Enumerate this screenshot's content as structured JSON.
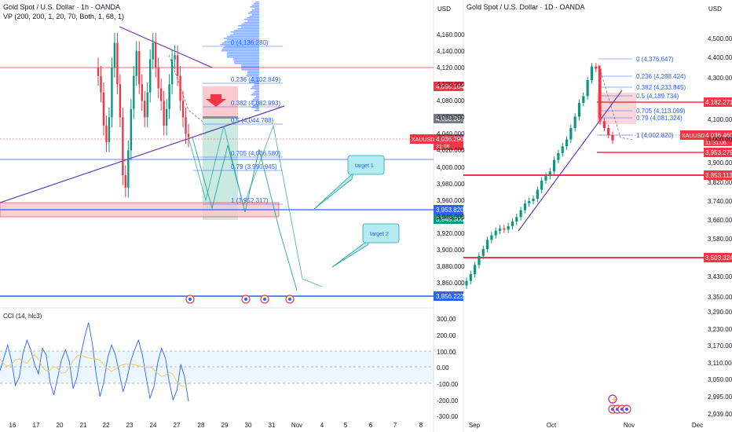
{
  "left_panel": {
    "title": "Gold Spot / U.S. Dollar · 1h · OANDA",
    "indicator": "VP (200, 200, 1, 20, 70, Both, 1, 68, 1)",
    "currency": "USD",
    "price_ticks": [
      "4,160.000",
      "4,140.000",
      "4,120.000",
      "4,100.000",
      "4,080.000",
      "4,060.000",
      "4,040.000",
      "4,020.000",
      "4,000.000",
      "3,980.000",
      "3,960.000",
      "3,940.000",
      "3,920.000",
      "3,900.000",
      "3,880.000",
      "3,860.000"
    ],
    "price_tags": [
      {
        "label": "4,096.164",
        "color": "#f23645"
      },
      {
        "label": "4,058.367",
        "color": "#787b86"
      },
      {
        "label": "4,036.290",
        "sub": "31:06",
        "color": "#f23645"
      },
      {
        "label": "3,953.820",
        "color": "#2962ff"
      },
      {
        "label": "3,945.300",
        "color": "#089981"
      },
      {
        "label": "3,856.222",
        "color": "#2962ff"
      }
    ],
    "symbol_tag": "XAUUSD",
    "fib_levels": [
      "0 (4,136.280)",
      "0.236 (4,102.849)",
      "0.382 (4,082.993)",
      "0.5 (4,044.788)",
      "0.705 (4,006.580)",
      "0.79 (3,990.945)",
      "1 (3,952.317)"
    ],
    "annotations": [
      "target 1",
      "target 2"
    ],
    "x_ticks": [
      "16",
      "17",
      "20",
      "21",
      "22",
      "23",
      "24",
      "27",
      "28",
      "29",
      "30",
      "31",
      "Nov",
      "4",
      "5",
      "6",
      "7",
      "8"
    ],
    "cci": {
      "label": "CCI (14, hlc3)",
      "ticks": [
        "300.00",
        "200.00",
        "100.00",
        "0.00",
        "-100.00",
        "-200.00",
        "-300.00"
      ]
    }
  },
  "right_panel": {
    "title": "Gold Spot / U.S. Dollar · 1D · OANDA",
    "currency": "USD",
    "price_ticks": [
      "4,500.000",
      "4,400.000",
      "4,300.000",
      "4,100.000",
      "4,000.000",
      "3,900.000",
      "3,820.000",
      "3,740.000",
      "3,660.000",
      "3,580.000",
      "3,430.000",
      "3,350.000",
      "3,290.000",
      "3,230.000",
      "3,170.000",
      "3,110.000",
      "3,050.000",
      "2,995.000",
      "2,939.000"
    ],
    "price_tags": [
      {
        "label": "4,182.271",
        "color": "#f23645"
      },
      {
        "label": "4,036.460",
        "sub": "11:31:06",
        "color": "#f23645"
      },
      {
        "label": "3,953.279",
        "color": "#f23645"
      },
      {
        "label": "3,853.113",
        "color": "#f23645"
      },
      {
        "label": "3,503.324",
        "color": "#f23645"
      }
    ],
    "symbol_tag": "XAUUSD",
    "fib_levels": [
      "0 (4,376.647)",
      "0.236 (4,288.424)",
      "0.382 (4,233.845)",
      "0.5 (4,189.734)",
      "0.705 (4,113.099)",
      "0.79 (4,081.324)",
      "1 (4,002.820)"
    ],
    "x_ticks": [
      "Sep",
      "Oct",
      "Nov",
      "Dec"
    ]
  },
  "chart_data": [
    {
      "type": "line",
      "timeframe": "1h",
      "title": "Gold Spot / U.S. Dollar · 1h · OANDA",
      "ylim": [
        3856,
        4175
      ],
      "close_series": [
        4110,
        4090,
        4050,
        4030,
        4060,
        4120,
        4150,
        4100,
        4060,
        3990,
        3975,
        4020,
        4070,
        4110,
        4140,
        4100,
        4080,
        4060,
        4090,
        4130,
        4150,
        4120,
        4095,
        4080,
        4050,
        4070,
        4100,
        4130,
        4135,
        4110,
        4080,
        4060,
        4040,
        4036
      ],
      "current_price": 4036.29
    },
    {
      "type": "line",
      "timeframe": "1D",
      "title": "Gold Spot / U.S. Dollar · 1D · OANDA",
      "ylim": [
        2939,
        4500
      ],
      "close_series": [
        3420,
        3450,
        3490,
        3530,
        3560,
        3600,
        3620,
        3640,
        3650,
        3645,
        3660,
        3680,
        3700,
        3730,
        3760,
        3770,
        3780,
        3820,
        3860,
        3880,
        3900,
        3950,
        3980,
        4010,
        4040,
        4090,
        4140,
        4200,
        4230,
        4300,
        4360,
        4350,
        4120,
        4090,
        4060,
        4036
      ],
      "current_price": 4036.46
    },
    {
      "type": "line",
      "title": "CCI (14, hlc3)",
      "ylim": [
        -300,
        300
      ],
      "series": [
        {
          "name": "CCI",
          "values": [
            -20,
            60,
            140,
            40,
            -110,
            -60,
            90,
            170,
            110,
            20,
            -40,
            120,
            80,
            -90,
            -170,
            -60,
            50,
            110,
            40,
            -130,
            -60,
            80,
            190,
            280,
            150,
            -40,
            -180,
            -90,
            60,
            140,
            80,
            -30,
            -150,
            -70,
            40,
            110,
            170,
            80,
            -60,
            -190,
            -120,
            30,
            120,
            60,
            -90,
            -200,
            -140,
            20,
            -60,
            -210
          ]
        }
      ]
    }
  ]
}
